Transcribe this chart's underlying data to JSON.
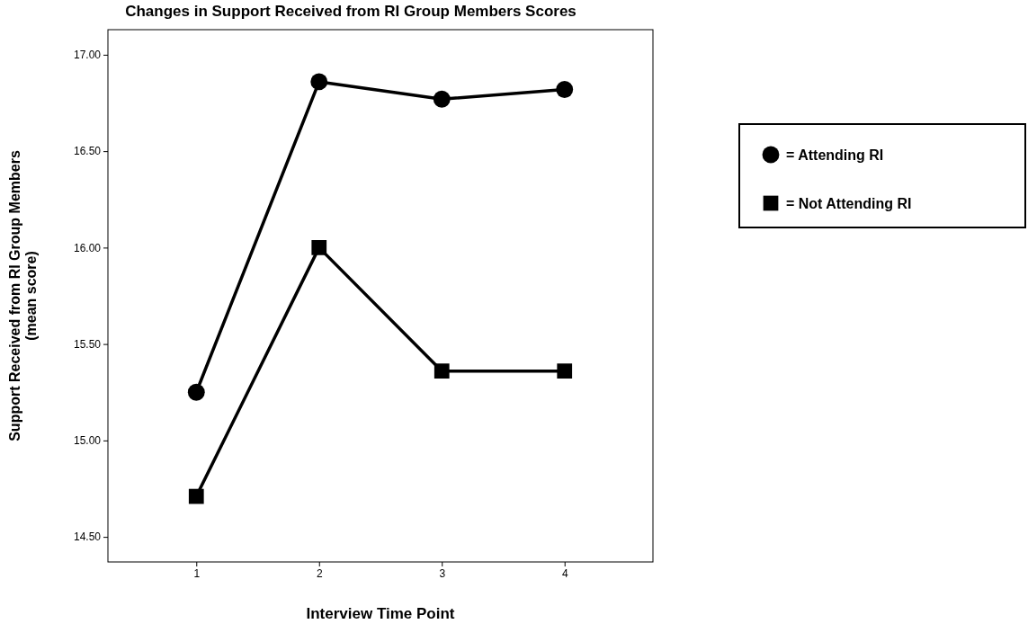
{
  "chart_data": {
    "type": "line",
    "title": "Changes in Support Received from RI Group Members Scores",
    "xlabel": "Interview Time Point",
    "ylabel": "Support Received from RI Group Members\n(mean score)",
    "categories": [
      "1",
      "2",
      "3",
      "4"
    ],
    "series": [
      {
        "name": "= Attending RI",
        "color": "#000000",
        "marker": "circle",
        "values": [
          15.25,
          16.86,
          16.77,
          16.82
        ]
      },
      {
        "name": "= Not Attending RI",
        "color": "#000000",
        "marker": "square",
        "values": [
          14.71,
          16.0,
          15.36,
          15.36
        ]
      }
    ],
    "ylim": [
      14.37,
      17.13
    ],
    "yticks": [
      {
        "value": 14.5,
        "label": "14.50"
      },
      {
        "value": 15,
        "label": "15.00"
      },
      {
        "value": 15.5,
        "label": "15.50"
      },
      {
        "value": 16,
        "label": "16.00"
      },
      {
        "value": 16.5,
        "label": "16.50"
      },
      {
        "value": 17,
        "label": "17.00"
      }
    ],
    "grid": false,
    "legend": "right",
    "line_style": "solid"
  }
}
